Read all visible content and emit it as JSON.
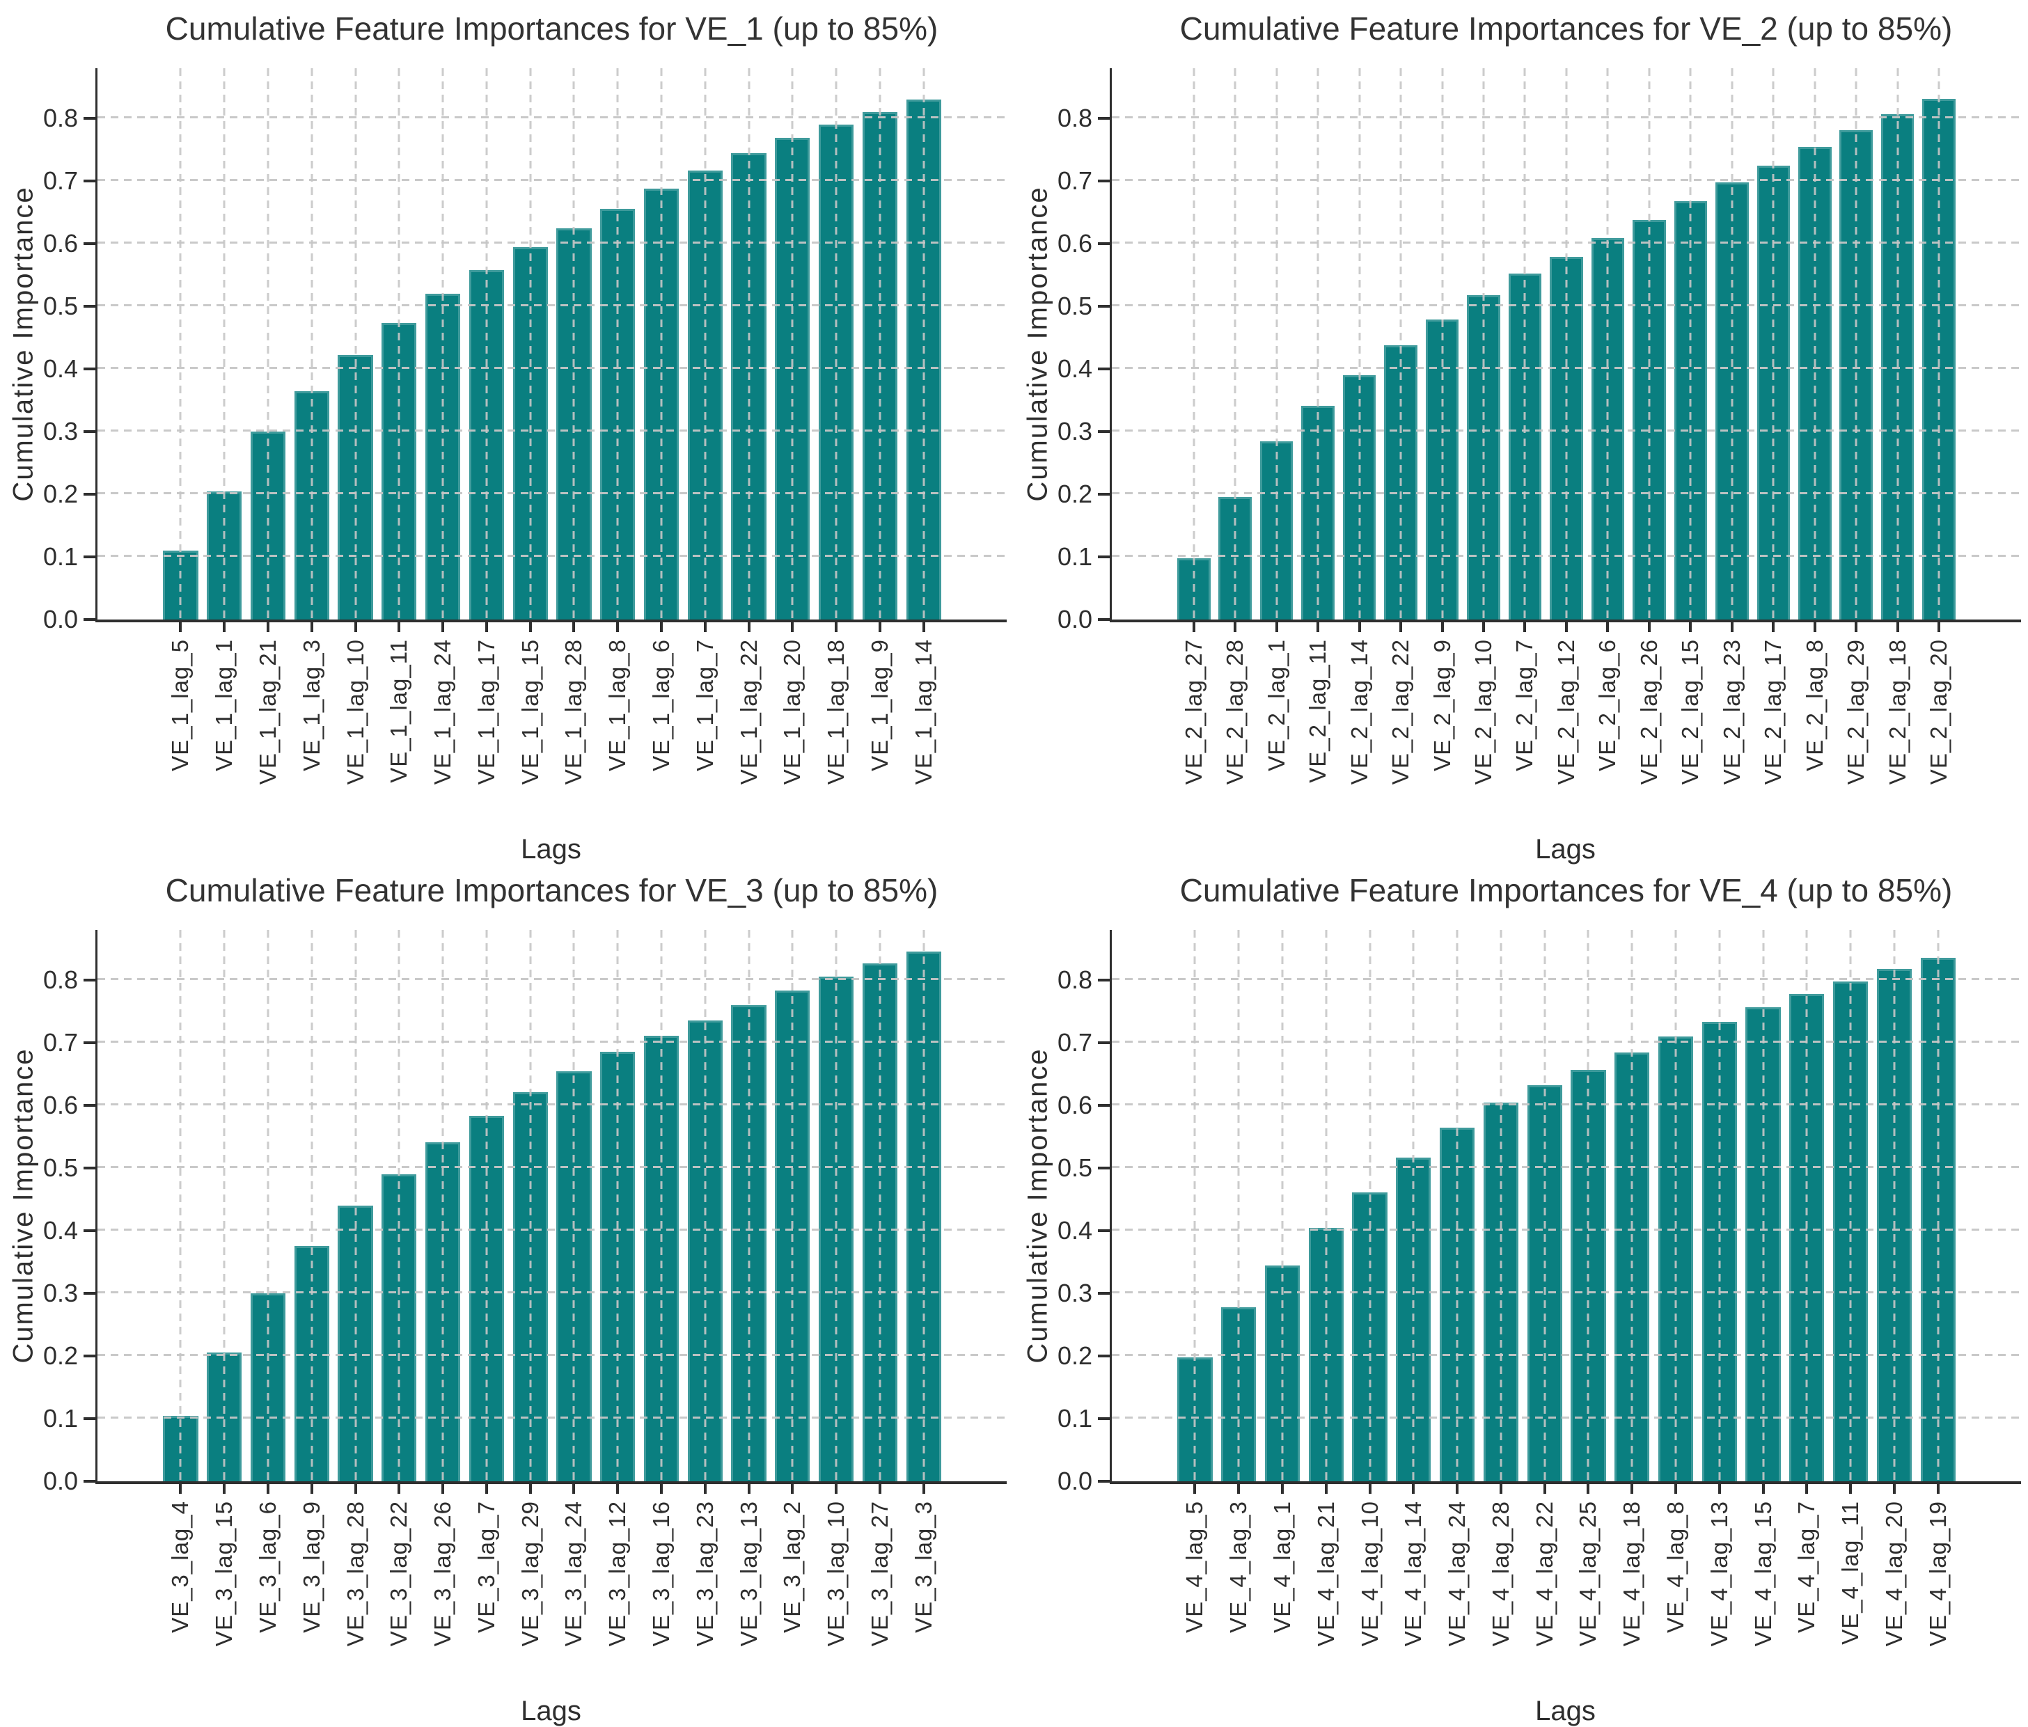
{
  "figure": {
    "kind": "matplotlib-style 2x2 grid of cumulative feature importance bar charts"
  },
  "colors": {
    "bar_fill": "#0a7f80",
    "bar_edge_highlight": "rgba(255,255,255,0.22)",
    "grid": "#c6c6c6",
    "spine": "#2f2f2f",
    "text": "#2e2e2e",
    "background": "#ffffff"
  },
  "chart_data": [
    {
      "type": "bar",
      "title": "Cumulative Feature Importances for VE_1 (up to 85%)",
      "xlabel": "Lags",
      "ylabel": "Cumulative Importance",
      "ylim": [
        0,
        0.88
      ],
      "grid": true,
      "legend": "none",
      "yticks": [
        "0.0",
        "0.1",
        "0.2",
        "0.3",
        "0.4",
        "0.5",
        "0.6",
        "0.7",
        "0.8"
      ],
      "categories": [
        "VE_1_lag_5",
        "VE_1_lag_1",
        "VE_1_lag_21",
        "VE_1_lag_3",
        "VE_1_lag_10",
        "VE_1_lag_11",
        "VE_1_lag_24",
        "VE_1_lag_17",
        "VE_1_lag_15",
        "VE_1_lag_28",
        "VE_1_lag_8",
        "VE_1_lag_6",
        "VE_1_lag_7",
        "VE_1_lag_22",
        "VE_1_lag_20",
        "VE_1_lag_18",
        "VE_1_lag_9",
        "VE_1_lag_14"
      ],
      "values": [
        0.11,
        0.205,
        0.3,
        0.364,
        0.422,
        0.473,
        0.52,
        0.558,
        0.594,
        0.625,
        0.656,
        0.688,
        0.717,
        0.745,
        0.769,
        0.79,
        0.81,
        0.83
      ]
    },
    {
      "type": "bar",
      "title": "Cumulative Feature Importances for VE_2 (up to 85%)",
      "xlabel": "Lags",
      "ylabel": "Cumulative Importance",
      "ylim": [
        0,
        0.88
      ],
      "grid": true,
      "legend": "none",
      "yticks": [
        "0.0",
        "0.1",
        "0.2",
        "0.3",
        "0.4",
        "0.5",
        "0.6",
        "0.7",
        "0.8"
      ],
      "categories": [
        "VE_2_lag_27",
        "VE_2_lag_28",
        "VE_2_lag_1",
        "VE_2_lag_11",
        "VE_2_lag_14",
        "VE_2_lag_22",
        "VE_2_lag_9",
        "VE_2_lag_10",
        "VE_2_lag_7",
        "VE_2_lag_12",
        "VE_2_lag_6",
        "VE_2_lag_26",
        "VE_2_lag_15",
        "VE_2_lag_23",
        "VE_2_lag_17",
        "VE_2_lag_8",
        "VE_2_lag_29",
        "VE_2_lag_18",
        "VE_2_lag_20"
      ],
      "values": [
        0.098,
        0.196,
        0.284,
        0.341,
        0.39,
        0.438,
        0.479,
        0.518,
        0.552,
        0.579,
        0.609,
        0.638,
        0.668,
        0.698,
        0.724,
        0.754,
        0.781,
        0.807,
        0.831
      ]
    },
    {
      "type": "bar",
      "title": "Cumulative Feature Importances for VE_3 (up to 85%)",
      "xlabel": "Lags",
      "ylabel": "Cumulative Importance",
      "ylim": [
        0,
        0.88
      ],
      "grid": true,
      "legend": "none",
      "yticks": [
        "0.0",
        "0.1",
        "0.2",
        "0.3",
        "0.4",
        "0.5",
        "0.6",
        "0.7",
        "0.8"
      ],
      "categories": [
        "VE_3_lag_4",
        "VE_3_lag_15",
        "VE_3_lag_6",
        "VE_3_lag_9",
        "VE_3_lag_28",
        "VE_3_lag_22",
        "VE_3_lag_26",
        "VE_3_lag_7",
        "VE_3_lag_29",
        "VE_3_lag_24",
        "VE_3_lag_12",
        "VE_3_lag_16",
        "VE_3_lag_23",
        "VE_3_lag_13",
        "VE_3_lag_2",
        "VE_3_lag_10",
        "VE_3_lag_27",
        "VE_3_lag_3"
      ],
      "values": [
        0.104,
        0.206,
        0.3,
        0.376,
        0.44,
        0.49,
        0.541,
        0.583,
        0.621,
        0.655,
        0.686,
        0.711,
        0.736,
        0.76,
        0.783,
        0.806,
        0.827,
        0.846
      ]
    },
    {
      "type": "bar",
      "title": "Cumulative Feature Importances for VE_4 (up to 85%)",
      "xlabel": "Lags",
      "ylabel": "Cumulative Importance",
      "ylim": [
        0,
        0.88
      ],
      "grid": true,
      "legend": "none",
      "yticks": [
        "0.0",
        "0.1",
        "0.2",
        "0.3",
        "0.4",
        "0.5",
        "0.6",
        "0.7",
        "0.8"
      ],
      "categories": [
        "VE_4_lag_5",
        "VE_4_lag_3",
        "VE_4_lag_1",
        "VE_4_lag_21",
        "VE_4_lag_10",
        "VE_4_lag_14",
        "VE_4_lag_24",
        "VE_4_lag_28",
        "VE_4_lag_22",
        "VE_4_lag_25",
        "VE_4_lag_18",
        "VE_4_lag_8",
        "VE_4_lag_13",
        "VE_4_lag_15",
        "VE_4_lag_7",
        "VE_4_lag_11",
        "VE_4_lag_20",
        "VE_4_lag_19"
      ],
      "values": [
        0.198,
        0.278,
        0.344,
        0.405,
        0.461,
        0.517,
        0.564,
        0.605,
        0.632,
        0.657,
        0.684,
        0.71,
        0.733,
        0.757,
        0.778,
        0.798,
        0.818,
        0.836
      ]
    }
  ]
}
